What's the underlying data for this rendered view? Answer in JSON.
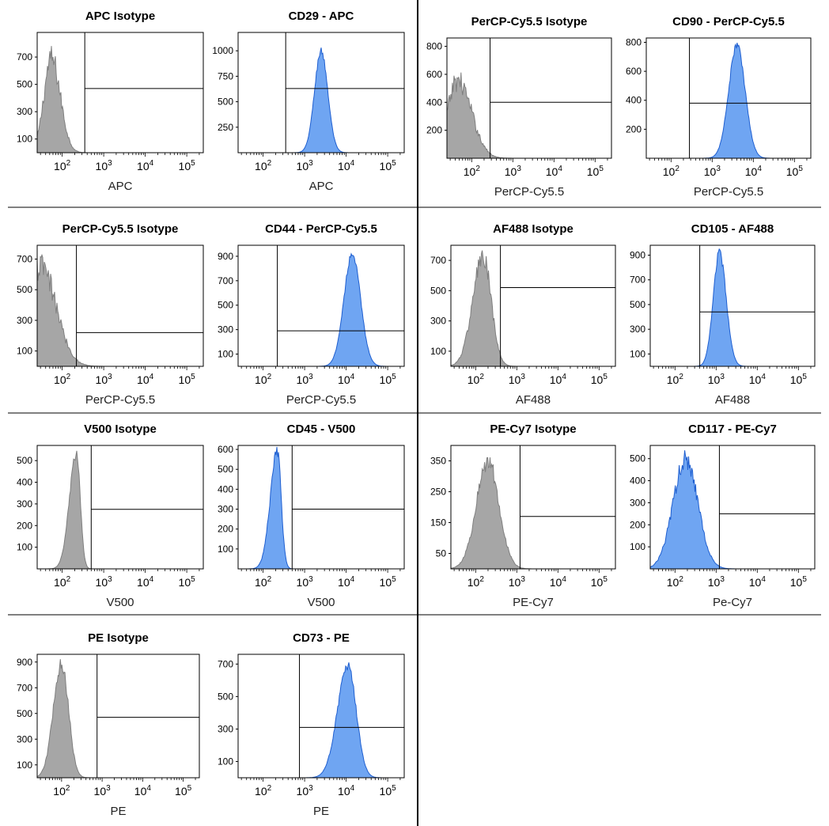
{
  "figure": {
    "colors": {
      "isotype_fill": "#a6a6a6",
      "isotype_stroke": "#7f7f7f",
      "stained_fill": "#6fa5f2",
      "stained_stroke": "#1f5fd0",
      "frame": "#000000",
      "gate": "#000000"
    }
  },
  "chart_data": [
    {
      "type": "area",
      "title": "APC Isotype",
      "xlabel": "APC",
      "ylabel": "",
      "x_scale": "log",
      "xlim": [
        25,
        250000
      ],
      "xticks": [
        "10^2",
        "10^3",
        "10^4",
        "10^5"
      ],
      "yticks": [
        100,
        300,
        500,
        700
      ],
      "ylim": [
        0,
        880
      ],
      "gate": {
        "x": 350,
        "y": 470
      },
      "series": [
        {
          "kind": "isotype",
          "peak_x": 55,
          "peak_y": 690,
          "width": 0.18,
          "skew": 1.2,
          "noise": 0.28
        }
      ]
    },
    {
      "type": "area",
      "title": "CD29 - APC",
      "xlabel": "APC",
      "ylabel": "",
      "x_scale": "log",
      "xlim": [
        25,
        250000
      ],
      "xticks": [
        "10^2",
        "10^3",
        "10^4",
        "10^5"
      ],
      "yticks": [
        250,
        500,
        750,
        1000
      ],
      "ylim": [
        0,
        1180
      ],
      "gate": {
        "x": 350,
        "y": 630
      },
      "series": [
        {
          "kind": "stained",
          "peak_x": 2500,
          "peak_y": 1000,
          "width": 0.16,
          "skew": 1.0,
          "noise": 0.07
        }
      ]
    },
    {
      "type": "area",
      "title": "PerCP-Cy5.5 Isotype",
      "xlabel": "PerCP-Cy5.5",
      "ylabel": "",
      "x_scale": "log",
      "xlim": [
        25,
        250000
      ],
      "xticks": [
        "10^2",
        "10^3",
        "10^4",
        "10^5"
      ],
      "yticks": [
        200,
        400,
        600,
        800
      ],
      "ylim": [
        0,
        860
      ],
      "gate": {
        "x": 280,
        "y": 400
      },
      "series": [
        {
          "kind": "isotype",
          "peak_x": 45,
          "peak_y": 560,
          "width": 0.24,
          "skew": 1.4,
          "noise": 0.3
        }
      ]
    },
    {
      "type": "area",
      "title": "CD90 - PerCP-Cy5.5",
      "xlabel": "PerCP-Cy5.5",
      "ylabel": "",
      "x_scale": "log",
      "xlim": [
        25,
        250000
      ],
      "xticks": [
        "10^2",
        "10^3",
        "10^4",
        "10^5"
      ],
      "yticks": [
        200,
        400,
        600,
        800
      ],
      "ylim": [
        0,
        830
      ],
      "gate": {
        "x": 280,
        "y": 380
      },
      "series": [
        {
          "kind": "stained",
          "peak_x": 4000,
          "peak_y": 780,
          "width": 0.2,
          "skew": 1.0,
          "noise": 0.07
        }
      ]
    },
    {
      "type": "area",
      "title": "PerCP-Cy5.5 Isotype",
      "xlabel": "PerCP-Cy5.5",
      "ylabel": "",
      "x_scale": "log",
      "xlim": [
        25,
        250000
      ],
      "xticks": [
        "10^2",
        "10^3",
        "10^4",
        "10^5"
      ],
      "yticks": [
        100,
        300,
        500,
        700
      ],
      "ylim": [
        0,
        790
      ],
      "gate": {
        "x": 220,
        "y": 220
      },
      "series": [
        {
          "kind": "isotype",
          "peak_x": 30,
          "peak_y": 650,
          "width": 0.25,
          "skew": 1.5,
          "noise": 0.3
        }
      ]
    },
    {
      "type": "area",
      "title": "CD44 - PerCP-Cy5.5",
      "xlabel": "PerCP-Cy5.5",
      "ylabel": "",
      "x_scale": "log",
      "xlim": [
        25,
        250000
      ],
      "xticks": [
        "10^2",
        "10^3",
        "10^4",
        "10^5"
      ],
      "yticks": [
        100,
        300,
        500,
        700,
        900
      ],
      "ylim": [
        0,
        990
      ],
      "gate": {
        "x": 220,
        "y": 290
      },
      "series": [
        {
          "kind": "stained",
          "peak_x": 14000,
          "peak_y": 920,
          "width": 0.2,
          "skew": 1.0,
          "noise": 0.06
        }
      ]
    },
    {
      "type": "area",
      "title": "AF488 Isotype",
      "xlabel": "AF488",
      "ylabel": "",
      "x_scale": "log",
      "xlim": [
        25,
        250000
      ],
      "xticks": [
        "10^2",
        "10^3",
        "10^4",
        "10^5"
      ],
      "yticks": [
        100,
        300,
        500,
        700
      ],
      "ylim": [
        0,
        800
      ],
      "gate": {
        "x": 400,
        "y": 520
      },
      "series": [
        {
          "kind": "isotype",
          "peak_x": 150,
          "peak_y": 720,
          "width": 0.25,
          "skew": 0.8,
          "noise": 0.22
        }
      ]
    },
    {
      "type": "area",
      "title": "CD105 - AF488",
      "xlabel": "AF488",
      "ylabel": "",
      "x_scale": "log",
      "xlim": [
        25,
        250000
      ],
      "xticks": [
        "10^2",
        "10^3",
        "10^4",
        "10^5"
      ],
      "yticks": [
        100,
        300,
        500,
        700,
        900
      ],
      "ylim": [
        0,
        980
      ],
      "gate": {
        "x": 400,
        "y": 440
      },
      "series": [
        {
          "kind": "stained",
          "peak_x": 1200,
          "peak_y": 920,
          "width": 0.15,
          "skew": 1.1,
          "noise": 0.07
        }
      ]
    },
    {
      "type": "area",
      "title": "V500 Isotype",
      "xlabel": "V500",
      "ylabel": "",
      "x_scale": "log",
      "xlim": [
        25,
        250000
      ],
      "xticks": [
        "10^2",
        "10^3",
        "10^4",
        "10^5"
      ],
      "yticks": [
        100,
        200,
        300,
        400,
        500
      ],
      "ylim": [
        0,
        570
      ],
      "gate": {
        "x": 500,
        "y": 275
      },
      "series": [
        {
          "kind": "isotype",
          "peak_x": 220,
          "peak_y": 530,
          "width": 0.17,
          "skew": 0.55,
          "noise": 0.1
        }
      ]
    },
    {
      "type": "area",
      "title": "CD45 - V500",
      "xlabel": "V500",
      "ylabel": "",
      "x_scale": "log",
      "xlim": [
        25,
        250000
      ],
      "xticks": [
        "10^2",
        "10^3",
        "10^4",
        "10^5"
      ],
      "yticks": [
        100,
        200,
        300,
        400,
        500,
        600
      ],
      "ylim": [
        0,
        620
      ],
      "gate": {
        "x": 500,
        "y": 300
      },
      "series": [
        {
          "kind": "stained",
          "peak_x": 220,
          "peak_y": 590,
          "width": 0.17,
          "skew": 0.55,
          "noise": 0.1
        }
      ]
    },
    {
      "type": "area",
      "title": "PE-Cy7 Isotype",
      "xlabel": "PE-Cy7",
      "ylabel": "",
      "x_scale": "log",
      "xlim": [
        25,
        250000
      ],
      "xticks": [
        "10^2",
        "10^3",
        "10^4",
        "10^5"
      ],
      "yticks": [
        50,
        150,
        250,
        350
      ],
      "ylim": [
        0,
        400
      ],
      "gate": {
        "x": 1200,
        "y": 170
      },
      "series": [
        {
          "kind": "isotype",
          "peak_x": 200,
          "peak_y": 350,
          "width": 0.28,
          "skew": 0.95,
          "noise": 0.18
        }
      ]
    },
    {
      "type": "area",
      "title": "CD117 - PE-Cy7",
      "xlabel": "Pe-Cy7",
      "ylabel": "",
      "x_scale": "log",
      "xlim": [
        25,
        250000
      ],
      "xticks": [
        "10^2",
        "10^3",
        "10^4",
        "10^5"
      ],
      "yticks": [
        100,
        200,
        300,
        400,
        500
      ],
      "ylim": [
        0,
        560
      ],
      "gate": {
        "x": 1200,
        "y": 250
      },
      "series": [
        {
          "kind": "stained",
          "peak_x": 180,
          "peak_y": 500,
          "width": 0.3,
          "skew": 1.0,
          "noise": 0.18
        }
      ]
    },
    {
      "type": "area",
      "title": "PE Isotype",
      "xlabel": "PE",
      "ylabel": "",
      "x_scale": "log",
      "xlim": [
        25,
        250000
      ],
      "xticks": [
        "10^2",
        "10^3",
        "10^4",
        "10^5"
      ],
      "yticks": [
        100,
        300,
        500,
        700,
        900
      ],
      "ylim": [
        0,
        960
      ],
      "gate": {
        "x": 750,
        "y": 470
      },
      "series": [
        {
          "kind": "isotype",
          "peak_x": 100,
          "peak_y": 900,
          "width": 0.2,
          "skew": 0.85,
          "noise": 0.14
        }
      ]
    },
    {
      "type": "area",
      "title": "CD73 - PE",
      "xlabel": "PE",
      "ylabel": "",
      "x_scale": "log",
      "xlim": [
        25,
        250000
      ],
      "xticks": [
        "10^2",
        "10^3",
        "10^4",
        "10^5"
      ],
      "yticks": [
        100,
        300,
        500,
        700
      ],
      "ylim": [
        0,
        760
      ],
      "gate": {
        "x": 750,
        "y": 310
      },
      "series": [
        {
          "kind": "stained",
          "peak_x": 11000,
          "peak_y": 690,
          "width": 0.25,
          "skew": 0.8,
          "noise": 0.08
        }
      ]
    }
  ]
}
